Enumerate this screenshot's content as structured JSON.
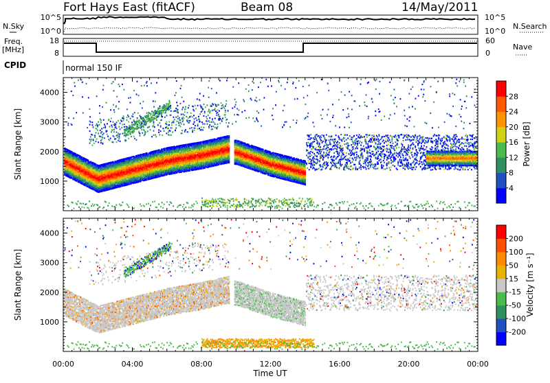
{
  "header": {
    "station": "Fort Hays East (fitACF)",
    "beam": "Beam 08",
    "date": "14/May/2011"
  },
  "noise_panel": {
    "left_label": "N.Sky",
    "right_label": "N.Search",
    "left_ticks": [
      "10^5",
      "10^0"
    ],
    "right_ticks": [
      "10^5",
      "10^0"
    ]
  },
  "freq_panel": {
    "left_label_1": "Freq.",
    "left_label_2": "[MHz]",
    "right_label": "Nave",
    "left_ticks": [
      "18",
      "8"
    ],
    "right_ticks": [
      "60",
      "0"
    ]
  },
  "cpid_panel": {
    "label": "CPID",
    "text": "normal 150 IF"
  },
  "chart_data": [
    {
      "type": "heatmap",
      "name": "power",
      "ylabel": "Slant Range [km]",
      "ylim": [
        0,
        4500
      ],
      "y_ticks": [
        "1000",
        "2000",
        "3000",
        "4000"
      ],
      "colorbar_label": "Power [dB]",
      "colorbar_ticks": [
        "4",
        "8",
        "12",
        "16",
        "20",
        "24",
        "28"
      ],
      "colorbar_colors": [
        "#0000ff",
        "#2050c0",
        "#2f8f5f",
        "#4cba4c",
        "#d2d214",
        "#ff9600",
        "#ff5a00",
        "#ff0000"
      ],
      "features": [
        {
          "x_hours": [
            0,
            2,
            4,
            6,
            8,
            9.5
          ],
          "center_km": [
            1700,
            1100,
            1400,
            1700,
            1900,
            2100
          ]
        },
        {
          "x_hours": [
            10,
            12,
            14
          ],
          "center_km": [
            2000,
            1600,
            1300
          ]
        }
      ]
    },
    {
      "type": "heatmap",
      "name": "velocity",
      "ylabel": "Slant Range [km]",
      "ylim": [
        0,
        4500
      ],
      "y_ticks": [
        "1000",
        "2000",
        "3000",
        "4000"
      ],
      "colorbar_label": "Velocity [m s⁻¹]",
      "colorbar_ticks": [
        "200",
        "100",
        "50",
        "15",
        "-15",
        "-50",
        "-100",
        "-200"
      ],
      "colorbar_colors": [
        "#0000ff",
        "#2050c0",
        "#2f8f5f",
        "#4cba4c",
        "#c8c8c8",
        "#e6b400",
        "#ff8c00",
        "#ff5000",
        "#ff0000"
      ]
    }
  ],
  "xaxis": {
    "label": "Time UT",
    "ticks": [
      "00:00",
      "04:00",
      "08:00",
      "12:00",
      "16:00",
      "20:00",
      "00:00"
    ]
  }
}
